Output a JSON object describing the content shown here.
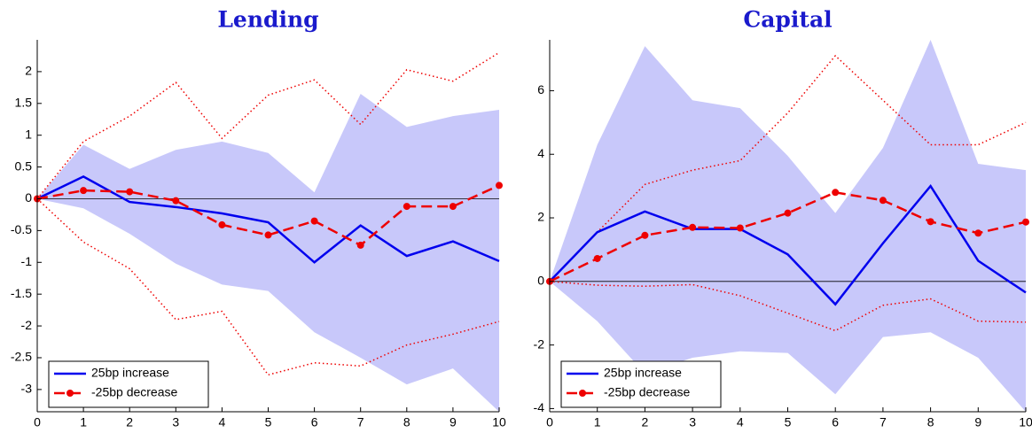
{
  "chart_data": [
    {
      "type": "line",
      "title": "Lending",
      "x": [
        0,
        1,
        2,
        3,
        4,
        5,
        6,
        7,
        8,
        9,
        10
      ],
      "xlim": [
        0,
        10
      ],
      "xticks": [
        0,
        1,
        2,
        3,
        4,
        5,
        6,
        7,
        8,
        9,
        10
      ],
      "ylim": [
        -3.35,
        2.5
      ],
      "yticks": [
        2,
        1.5,
        1,
        0.5,
        0,
        -0.5,
        -1,
        -1.5,
        -2,
        -2.5,
        -3
      ],
      "legend": "lower left",
      "series": [
        {
          "name": "25bp increase",
          "color": "#0000ee",
          "style": "solid",
          "values": [
            0,
            0.35,
            -0.05,
            -0.13,
            -0.23,
            -0.37,
            -1.0,
            -0.42,
            -0.9,
            -0.67,
            -0.98
          ]
        },
        {
          "name": "-25bp decrease",
          "color": "#ee0000",
          "style": "dashed",
          "values": [
            0,
            0.13,
            0.11,
            -0.03,
            -0.41,
            -0.57,
            -0.35,
            -0.73,
            -0.12,
            -0.12,
            0.21
          ]
        }
      ],
      "bands": [
        {
          "color": "#c8c8fa",
          "upper": [
            0,
            0.85,
            0.47,
            0.77,
            0.9,
            0.72,
            0.1,
            1.65,
            1.13,
            1.3,
            1.4
          ],
          "lower": [
            0,
            -0.15,
            -0.55,
            -1.02,
            -1.35,
            -1.45,
            -2.1,
            -2.5,
            -2.92,
            -2.67,
            -3.35
          ]
        }
      ],
      "bounds": [
        {
          "color": "#ee0000",
          "upper": [
            0,
            0.9,
            1.3,
            1.83,
            0.95,
            1.63,
            1.87,
            1.17,
            2.03,
            1.85,
            2.3
          ],
          "lower": [
            0,
            -0.68,
            -1.1,
            -1.9,
            -1.77,
            -2.77,
            -2.58,
            -2.63,
            -2.3,
            -2.13,
            -1.93
          ]
        }
      ]
    },
    {
      "type": "line",
      "title": "Capital",
      "x": [
        0,
        1,
        2,
        3,
        4,
        5,
        6,
        7,
        8,
        9,
        10
      ],
      "xlim": [
        0,
        10
      ],
      "xticks": [
        0,
        1,
        2,
        3,
        4,
        5,
        6,
        7,
        8,
        9,
        10
      ],
      "ylim": [
        -4.1,
        7.6
      ],
      "yticks": [
        6,
        4,
        2,
        0,
        -2,
        -4
      ],
      "legend": "lower left",
      "series": [
        {
          "name": "25bp increase",
          "color": "#0000ee",
          "style": "solid",
          "values": [
            0,
            1.55,
            2.2,
            1.65,
            1.65,
            0.85,
            -0.72,
            1.2,
            3.0,
            0.65,
            -0.35
          ]
        },
        {
          "name": "-25bp decrease",
          "color": "#ee0000",
          "style": "dashed",
          "values": [
            0,
            0.72,
            1.45,
            1.7,
            1.68,
            2.15,
            2.8,
            2.55,
            1.88,
            1.52,
            1.87
          ]
        }
      ],
      "bands": [
        {
          "color": "#c8c8fa",
          "upper": [
            0,
            4.3,
            7.4,
            5.7,
            5.45,
            3.95,
            2.15,
            4.2,
            7.6,
            3.7,
            3.5
          ],
          "lower": [
            0,
            -1.25,
            -2.9,
            -2.4,
            -2.2,
            -2.25,
            -3.55,
            -1.75,
            -1.6,
            -2.4,
            -4.1
          ]
        }
      ],
      "bounds": [
        {
          "color": "#ee0000",
          "upper": [
            0,
            1.55,
            3.05,
            3.5,
            3.8,
            5.3,
            7.1,
            5.7,
            4.3,
            4.3,
            5.0
          ],
          "lower": [
            0,
            -0.12,
            -0.15,
            -0.1,
            -0.45,
            -1.0,
            -1.55,
            -0.75,
            -0.55,
            -1.25,
            -1.28
          ]
        }
      ]
    }
  ]
}
